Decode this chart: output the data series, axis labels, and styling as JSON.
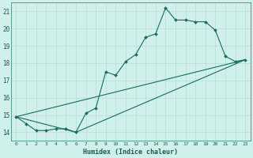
{
  "title": "",
  "xlabel": "Humidex (Indice chaleur)",
  "bg_color": "#cff0eb",
  "line_color": "#1a6b5e",
  "grid_major_color": "#b8ddd8",
  "grid_minor_color": "#d4edea",
  "xlim": [
    -0.5,
    23.5
  ],
  "ylim": [
    13.5,
    21.5
  ],
  "xticks": [
    0,
    1,
    2,
    3,
    4,
    5,
    6,
    7,
    8,
    9,
    10,
    11,
    12,
    13,
    14,
    15,
    16,
    17,
    18,
    19,
    20,
    21,
    22,
    23
  ],
  "yticks": [
    14,
    15,
    16,
    17,
    18,
    19,
    20,
    21
  ],
  "lines": [
    {
      "x": [
        0,
        1,
        2,
        3,
        4,
        5,
        6,
        7,
        8,
        9,
        10,
        11,
        12,
        13,
        14,
        15,
        16,
        17,
        18,
        19,
        20,
        21,
        22,
        23
      ],
      "y": [
        14.9,
        14.5,
        14.1,
        14.1,
        14.2,
        14.2,
        14.0,
        15.1,
        15.4,
        17.5,
        17.3,
        18.1,
        18.5,
        19.5,
        19.7,
        21.2,
        20.5,
        20.5,
        20.4,
        20.4,
        19.9,
        18.4,
        18.1,
        18.2
      ],
      "marker": true
    },
    {
      "x": [
        0,
        23
      ],
      "y": [
        14.9,
        18.2
      ],
      "marker": false
    },
    {
      "x": [
        0,
        6,
        23
      ],
      "y": [
        14.9,
        14.0,
        18.2
      ],
      "marker": false
    }
  ]
}
